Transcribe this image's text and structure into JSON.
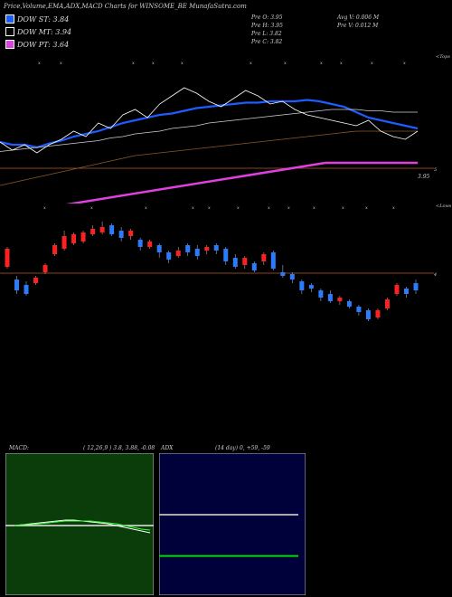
{
  "header": {
    "title": "Price,Volume,EMA,ADX,MACD Charts for WINSOME_BE MunafaSutra.com"
  },
  "legend": [
    {
      "label": "DOW ST: 3.84",
      "color": "#1e5cff"
    },
    {
      "label": "DOW MT: 3.94",
      "color": "#000000"
    },
    {
      "label": "DOW PT: 3.64",
      "color": "#e040e0"
    }
  ],
  "stats": {
    "pre_o": "Pre  O: 3.95",
    "pre_h": "Pre  H: 3.95",
    "pre_l": "Pre  L: 3.82",
    "pre_c": "Pre  C: 3.82",
    "avg_v": "Avg V: 0.006  M",
    "pre_v": "Pre  V: 0.012  M"
  },
  "price_labels": {
    "top": "<Tops",
    "level": "3.95",
    "base": "5"
  },
  "volume_labels": {
    "top": "<Lows",
    "level": "4"
  },
  "macd_panel": {
    "label": "MACD:",
    "params": "( 12,26,9 ) 3.8, 3.88, -0.08"
  },
  "adx_panel": {
    "label": "ADX",
    "params": "(14  day) 0, +59, -59"
  },
  "colors": {
    "up": "#ff2020",
    "down": "#2a7bff",
    "ema_short": "#1e5cff",
    "ema_long": "#e040e0",
    "macd_bg": "#0b3d0b",
    "adx_bg": "#00003a"
  },
  "chart_data": [
    {
      "type": "line",
      "series": [
        {
          "values": [
            3.72,
            3.7,
            3.7,
            3.68,
            3.71,
            3.73,
            3.76,
            3.78,
            3.8,
            3.83,
            3.86,
            3.88,
            3.9,
            3.92,
            3.93,
            3.95,
            3.97,
            3.98,
            3.99,
            4.0,
            4.01,
            4.01,
            4.02,
            4.02,
            4.02,
            4.03,
            4.02,
            4.0,
            3.98,
            3.94,
            3.9,
            3.88,
            3.86,
            3.84,
            3.82
          ]
        },
        {
          "values": [
            3.65,
            3.66,
            3.67,
            3.68,
            3.69,
            3.7,
            3.71,
            3.72,
            3.73,
            3.75,
            3.76,
            3.78,
            3.79,
            3.8,
            3.82,
            3.83,
            3.84,
            3.86,
            3.87,
            3.88,
            3.89,
            3.9,
            3.91,
            3.92,
            3.93,
            3.94,
            3.95,
            3.96,
            3.96,
            3.96,
            3.95,
            3.95,
            3.94,
            3.94,
            3.94
          ]
        },
        {
          "values": [
            3.4,
            3.42,
            3.44,
            3.46,
            3.48,
            3.5,
            3.52,
            3.54,
            3.56,
            3.58,
            3.6,
            3.62,
            3.63,
            3.64,
            3.65,
            3.66,
            3.67,
            3.68,
            3.69,
            3.7,
            3.71,
            3.72,
            3.73,
            3.74,
            3.75,
            3.76,
            3.77,
            3.78,
            3.79,
            3.8,
            3.8,
            3.8,
            3.8,
            3.8,
            3.8
          ]
        }
      ]
    },
    {
      "type": "bar",
      "candles": [
        {
          "o": 3.85,
          "c": 3.95,
          "h": 3.96,
          "l": 3.84
        },
        {
          "o": 3.78,
          "c": 3.72,
          "h": 3.8,
          "l": 3.7
        },
        {
          "o": 3.75,
          "c": 3.7,
          "h": 3.77,
          "l": 3.69
        },
        {
          "o": 3.76,
          "c": 3.79,
          "h": 3.8,
          "l": 3.75
        },
        {
          "o": 3.82,
          "c": 3.86,
          "h": 3.87,
          "l": 3.81
        },
        {
          "o": 3.92,
          "c": 3.97,
          "h": 3.98,
          "l": 3.91
        },
        {
          "o": 3.95,
          "c": 4.02,
          "h": 4.05,
          "l": 3.94
        },
        {
          "o": 3.98,
          "c": 4.03,
          "h": 4.04,
          "l": 3.97
        },
        {
          "o": 3.99,
          "c": 4.04,
          "h": 4.05,
          "l": 3.98
        },
        {
          "o": 4.03,
          "c": 4.06,
          "h": 4.08,
          "l": 4.02
        },
        {
          "o": 4.04,
          "c": 4.07,
          "h": 4.1,
          "l": 4.03
        },
        {
          "o": 4.08,
          "c": 4.03,
          "h": 4.09,
          "l": 4.02
        },
        {
          "o": 4.05,
          "c": 4.01,
          "h": 4.07,
          "l": 3.99
        },
        {
          "o": 4.02,
          "c": 4.05,
          "h": 4.06,
          "l": 4.0
        },
        {
          "o": 4.0,
          "c": 3.96,
          "h": 4.01,
          "l": 3.94
        },
        {
          "o": 3.96,
          "c": 3.99,
          "h": 4.0,
          "l": 3.95
        },
        {
          "o": 3.97,
          "c": 3.93,
          "h": 3.98,
          "l": 3.9
        },
        {
          "o": 3.93,
          "c": 3.89,
          "h": 3.94,
          "l": 3.87
        },
        {
          "o": 3.91,
          "c": 3.94,
          "h": 3.96,
          "l": 3.9
        },
        {
          "o": 3.97,
          "c": 3.93,
          "h": 3.98,
          "l": 3.91
        },
        {
          "o": 3.95,
          "c": 3.91,
          "h": 3.97,
          "l": 3.89
        },
        {
          "o": 3.94,
          "c": 3.96,
          "h": 3.97,
          "l": 3.92
        },
        {
          "o": 3.97,
          "c": 3.94,
          "h": 3.98,
          "l": 3.92
        },
        {
          "o": 3.95,
          "c": 3.88,
          "h": 3.96,
          "l": 3.86
        },
        {
          "o": 3.9,
          "c": 3.85,
          "h": 3.92,
          "l": 3.84
        },
        {
          "o": 3.86,
          "c": 3.9,
          "h": 3.91,
          "l": 3.84
        },
        {
          "o": 3.87,
          "c": 3.83,
          "h": 3.88,
          "l": 3.82
        },
        {
          "o": 3.88,
          "c": 3.92,
          "h": 3.93,
          "l": 3.86
        },
        {
          "o": 3.93,
          "c": 3.84,
          "h": 3.94,
          "l": 3.83
        },
        {
          "o": 3.82,
          "c": 3.8,
          "h": 3.86,
          "l": 3.79
        },
        {
          "o": 3.81,
          "c": 3.78,
          "h": 3.82,
          "l": 3.76
        },
        {
          "o": 3.77,
          "c": 3.72,
          "h": 3.78,
          "l": 3.7
        },
        {
          "o": 3.75,
          "c": 3.73,
          "h": 3.76,
          "l": 3.71
        },
        {
          "o": 3.72,
          "c": 3.68,
          "h": 3.73,
          "l": 3.66
        },
        {
          "o": 3.7,
          "c": 3.66,
          "h": 3.72,
          "l": 3.65
        },
        {
          "o": 3.66,
          "c": 3.68,
          "h": 3.69,
          "l": 3.64
        },
        {
          "o": 3.66,
          "c": 3.63,
          "h": 3.67,
          "l": 3.62
        },
        {
          "o": 3.63,
          "c": 3.6,
          "h": 3.64,
          "l": 3.58
        },
        {
          "o": 3.61,
          "c": 3.56,
          "h": 3.62,
          "l": 3.55
        },
        {
          "o": 3.57,
          "c": 3.61,
          "h": 3.62,
          "l": 3.56
        },
        {
          "o": 3.62,
          "c": 3.67,
          "h": 3.68,
          "l": 3.61
        },
        {
          "o": 3.7,
          "c": 3.75,
          "h": 3.76,
          "l": 3.69
        },
        {
          "o": 3.73,
          "c": 3.7,
          "h": 3.74,
          "l": 3.68
        },
        {
          "o": 3.76,
          "c": 3.72,
          "h": 3.78,
          "l": 3.7
        }
      ]
    },
    {
      "type": "line",
      "series": [
        {
          "values": [
            0,
            0.01,
            0.02,
            0.03,
            0.04,
            0.05,
            0.06,
            0.06,
            0.05,
            0.04,
            0.03,
            0.02,
            0.0,
            -0.02,
            -0.04,
            -0.06,
            -0.08
          ]
        },
        {
          "values": [
            0,
            0.01,
            0.01,
            0.02,
            0.03,
            0.04,
            0.05,
            0.05,
            0.05,
            0.05,
            0.04,
            0.03,
            0.02,
            0.0,
            -0.02,
            -0.04,
            -0.05
          ]
        }
      ]
    },
    {
      "type": "line",
      "series": [
        {
          "values": [
            59,
            59,
            59,
            59,
            59,
            59,
            59,
            59,
            59,
            59
          ]
        },
        {
          "values": [
            20,
            20,
            20,
            20,
            20,
            20,
            20,
            20,
            20,
            20
          ]
        }
      ]
    }
  ]
}
